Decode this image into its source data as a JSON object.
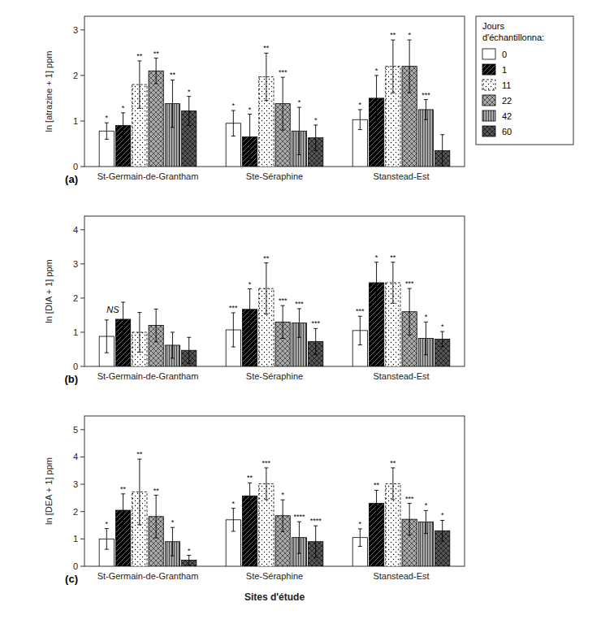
{
  "chart_data": [
    {
      "type": "bar",
      "label": "(a)",
      "ylabel": "ln [atrazine + 1] ppm",
      "categories": [
        "St-Germain-de-Grantham",
        "Ste-Séraphine",
        "Stanstead-Est"
      ],
      "ylim": [
        0,
        3.3
      ],
      "yticks": [
        0,
        1,
        2,
        3
      ],
      "grid": false,
      "legend": "right",
      "legend_title": "Jours\nd'échantillonna:",
      "series": [
        {
          "name": "0",
          "color": "white",
          "values": [
            0.78,
            0.95,
            1.03
          ],
          "errors": [
            0.18,
            0.28,
            0.22
          ],
          "annotations": [
            "*",
            "*",
            "*"
          ]
        },
        {
          "name": "1",
          "color": "black",
          "values": [
            0.9,
            0.65,
            1.5
          ],
          "errors": [
            0.28,
            0.5,
            0.5
          ],
          "annotations": [
            "*",
            "*",
            "*"
          ]
        },
        {
          "name": "11",
          "color": "white",
          "values": [
            1.8,
            1.97,
            2.2
          ],
          "errors": [
            0.52,
            0.52,
            0.58
          ],
          "annotations": [
            "**",
            "**",
            "**"
          ]
        },
        {
          "name": "22",
          "color": "#aaaaaa",
          "values": [
            2.1,
            1.38,
            2.2
          ],
          "errors": [
            0.28,
            0.58,
            0.58
          ],
          "annotations": [
            "**",
            "***",
            "*"
          ]
        },
        {
          "name": "42",
          "color": "#aaaaaa",
          "values": [
            1.38,
            0.78,
            1.25
          ],
          "errors": [
            0.52,
            0.52,
            0.22
          ],
          "annotations": [
            "**",
            "*",
            "***"
          ]
        },
        {
          "name": "60",
          "color": "#555555",
          "values": [
            1.22,
            0.63,
            0.35
          ],
          "errors": [
            0.32,
            0.28,
            0.35
          ],
          "annotations": [
            "*",
            "*",
            null
          ]
        }
      ]
    },
    {
      "type": "bar",
      "label": "(b)",
      "ylabel": "ln [DIA + 1] ppm",
      "categories": [
        "St-Germain-de-Grantham",
        "Ste-Séraphine",
        "Stanstead-Est"
      ],
      "ylim": [
        0,
        4.4
      ],
      "yticks": [
        0,
        1,
        2,
        3,
        4
      ],
      "grid": false,
      "annotations": [
        {
          "text": "NS",
          "y": 1.65
        }
      ],
      "series": [
        {
          "name": "0",
          "color": "white",
          "values": [
            0.88,
            1.07,
            1.05
          ],
          "errors": [
            0.48,
            0.5,
            0.42
          ],
          "annotations": [
            null,
            "***",
            "***"
          ]
        },
        {
          "name": "1",
          "color": "black",
          "values": [
            1.38,
            1.67,
            2.45
          ],
          "errors": [
            0.5,
            0.6,
            0.6
          ],
          "annotations": [
            null,
            "*",
            "*"
          ]
        },
        {
          "name": "11",
          "color": "white",
          "values": [
            1.0,
            2.28,
            2.45
          ],
          "errors": [
            0.58,
            0.75,
            0.6
          ],
          "annotations": [
            null,
            "**",
            "**"
          ]
        },
        {
          "name": "22",
          "color": "#aaaaaa",
          "values": [
            1.2,
            1.3,
            1.6
          ],
          "errors": [
            0.48,
            0.48,
            0.68
          ],
          "annotations": [
            null,
            "***",
            "***"
          ]
        },
        {
          "name": "42",
          "color": "#aaaaaa",
          "values": [
            0.62,
            1.27,
            0.82
          ],
          "errors": [
            0.38,
            0.42,
            0.48
          ],
          "annotations": [
            null,
            "***",
            "*"
          ]
        },
        {
          "name": "60",
          "color": "#555555",
          "values": [
            0.47,
            0.73,
            0.8
          ],
          "errors": [
            0.38,
            0.38,
            0.22
          ],
          "annotations": [
            null,
            "***",
            "*"
          ]
        }
      ]
    },
    {
      "type": "bar",
      "label": "(c)",
      "ylabel": "ln [DEA + 1] ppm",
      "xlabel": "Sites d'étude",
      "categories": [
        "St-Germain-de-Grantham",
        "Ste-Séraphine",
        "Stanstead-Est"
      ],
      "ylim": [
        0,
        5.5
      ],
      "yticks": [
        0,
        1,
        2,
        3,
        4,
        5
      ],
      "grid": false,
      "series": [
        {
          "name": "0",
          "color": "white",
          "values": [
            1.0,
            1.7,
            1.05
          ],
          "errors": [
            0.38,
            0.42,
            0.32
          ],
          "annotations": [
            "*",
            "*",
            "*"
          ]
        },
        {
          "name": "1",
          "color": "black",
          "values": [
            2.05,
            2.57,
            2.3
          ],
          "errors": [
            0.6,
            0.48,
            0.48
          ],
          "annotations": [
            "**",
            "**",
            "**"
          ]
        },
        {
          "name": "11",
          "color": "white",
          "values": [
            2.72,
            3.02,
            3.02
          ],
          "errors": [
            1.2,
            0.58,
            0.58
          ],
          "annotations": [
            "**",
            "***",
            "**"
          ]
        },
        {
          "name": "22",
          "color": "#aaaaaa",
          "values": [
            1.82,
            1.85,
            1.72
          ],
          "errors": [
            0.78,
            0.58,
            0.58
          ],
          "annotations": [
            "**",
            "*",
            "***"
          ]
        },
        {
          "name": "42",
          "color": "#aaaaaa",
          "values": [
            0.9,
            1.05,
            1.62
          ],
          "errors": [
            0.52,
            0.58,
            0.42
          ],
          "annotations": [
            "*",
            "****",
            "*"
          ]
        },
        {
          "name": "60",
          "color": "#555555",
          "values": [
            0.22,
            0.9,
            1.3
          ],
          "errors": [
            0.18,
            0.58,
            0.38
          ],
          "annotations": [
            "*",
            "****",
            "*"
          ]
        }
      ]
    }
  ]
}
